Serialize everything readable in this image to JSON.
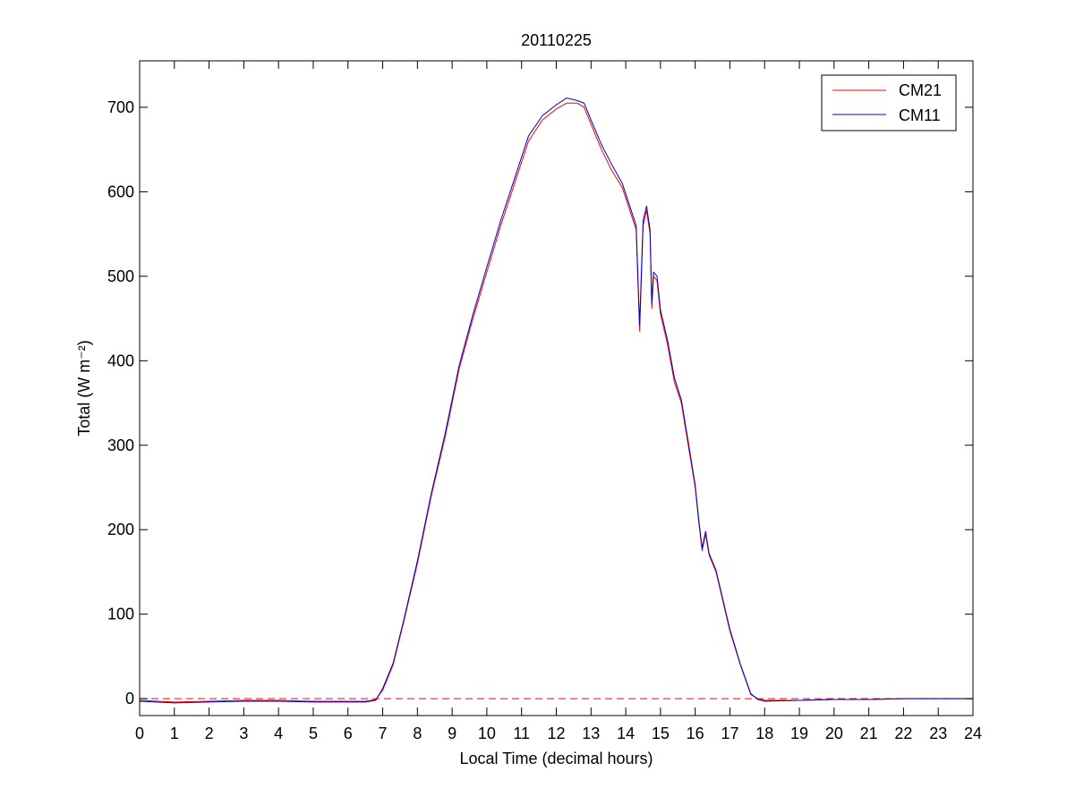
{
  "chart_data": {
    "type": "line",
    "title": "20110225",
    "xlabel": "Local Time (decimal hours)",
    "ylabel": "Total (W m⁻²)",
    "xlim": [
      0,
      24
    ],
    "ylim": [
      -20,
      755
    ],
    "x_ticks": [
      "0",
      "1",
      "2",
      "3",
      "4",
      "5",
      "6",
      "7",
      "8",
      "9",
      "10",
      "11",
      "12",
      "13",
      "14",
      "15",
      "16",
      "17",
      "18",
      "19",
      "20",
      "21",
      "22",
      "23",
      "24"
    ],
    "y_ticks": [
      "0",
      "100",
      "200",
      "300",
      "400",
      "500",
      "600",
      "700"
    ],
    "grid": false,
    "legend_position": "top-right",
    "reference_line": {
      "y": 0,
      "style": "dashed",
      "color": "#ff0000"
    },
    "series": [
      {
        "name": "CM21",
        "color": "#ff0000",
        "points": [
          [
            0,
            -2
          ],
          [
            1,
            -4
          ],
          [
            2,
            -3
          ],
          [
            3,
            -2
          ],
          [
            4,
            -2
          ],
          [
            5,
            -3
          ],
          [
            6,
            -3
          ],
          [
            6.5,
            -3
          ],
          [
            6.8,
            -1
          ],
          [
            7,
            10
          ],
          [
            7.3,
            40
          ],
          [
            7.6,
            90
          ],
          [
            8,
            160
          ],
          [
            8.4,
            240
          ],
          [
            8.8,
            310
          ],
          [
            9.2,
            390
          ],
          [
            9.6,
            450
          ],
          [
            10,
            505
          ],
          [
            10.4,
            560
          ],
          [
            10.8,
            610
          ],
          [
            11.2,
            660
          ],
          [
            11.6,
            685
          ],
          [
            12,
            698
          ],
          [
            12.3,
            705
          ],
          [
            12.6,
            705
          ],
          [
            12.8,
            700
          ],
          [
            13,
            680
          ],
          [
            13.3,
            650
          ],
          [
            13.6,
            625
          ],
          [
            13.9,
            605
          ],
          [
            14.1,
            580
          ],
          [
            14.3,
            555
          ],
          [
            14.4,
            435
          ],
          [
            14.5,
            560
          ],
          [
            14.6,
            578
          ],
          [
            14.7,
            550
          ],
          [
            14.75,
            462
          ],
          [
            14.8,
            500
          ],
          [
            14.9,
            495
          ],
          [
            15,
            455
          ],
          [
            15.2,
            420
          ],
          [
            15.4,
            375
          ],
          [
            15.6,
            350
          ],
          [
            15.8,
            300
          ],
          [
            16,
            250
          ],
          [
            16.1,
            210
          ],
          [
            16.2,
            175
          ],
          [
            16.3,
            195
          ],
          [
            16.4,
            170
          ],
          [
            16.6,
            150
          ],
          [
            17,
            80
          ],
          [
            17.3,
            40
          ],
          [
            17.6,
            5
          ],
          [
            17.8,
            0
          ],
          [
            18,
            -2
          ],
          [
            19,
            -2
          ],
          [
            20,
            -1
          ],
          [
            21,
            -1
          ],
          [
            22,
            0
          ],
          [
            23,
            0
          ],
          [
            24,
            0
          ]
        ]
      },
      {
        "name": "CM11",
        "color": "#0000cc",
        "points": [
          [
            0,
            -3
          ],
          [
            1,
            -5
          ],
          [
            2,
            -4
          ],
          [
            3,
            -3
          ],
          [
            4,
            -3
          ],
          [
            5,
            -4
          ],
          [
            6,
            -4
          ],
          [
            6.5,
            -4
          ],
          [
            6.8,
            -2
          ],
          [
            7,
            12
          ],
          [
            7.3,
            42
          ],
          [
            7.6,
            92
          ],
          [
            8,
            163
          ],
          [
            8.4,
            243
          ],
          [
            8.8,
            314
          ],
          [
            9.2,
            394
          ],
          [
            9.6,
            455
          ],
          [
            10,
            511
          ],
          [
            10.4,
            566
          ],
          [
            10.8,
            616
          ],
          [
            11.2,
            666
          ],
          [
            11.6,
            690
          ],
          [
            12,
            703
          ],
          [
            12.3,
            711
          ],
          [
            12.6,
            708
          ],
          [
            12.8,
            705
          ],
          [
            13,
            685
          ],
          [
            13.3,
            656
          ],
          [
            13.6,
            632
          ],
          [
            13.9,
            610
          ],
          [
            14.1,
            585
          ],
          [
            14.3,
            560
          ],
          [
            14.4,
            442
          ],
          [
            14.5,
            566
          ],
          [
            14.6,
            583
          ],
          [
            14.7,
            555
          ],
          [
            14.75,
            468
          ],
          [
            14.8,
            505
          ],
          [
            14.9,
            500
          ],
          [
            15,
            460
          ],
          [
            15.2,
            425
          ],
          [
            15.4,
            380
          ],
          [
            15.6,
            354
          ],
          [
            15.8,
            304
          ],
          [
            16,
            253
          ],
          [
            16.1,
            213
          ],
          [
            16.2,
            178
          ],
          [
            16.3,
            198
          ],
          [
            16.4,
            172
          ],
          [
            16.6,
            152
          ],
          [
            17,
            82
          ],
          [
            17.3,
            41
          ],
          [
            17.6,
            6
          ],
          [
            17.8,
            -1
          ],
          [
            18,
            -3
          ],
          [
            19,
            -2
          ],
          [
            20,
            -1
          ],
          [
            21,
            -1
          ],
          [
            22,
            0
          ],
          [
            23,
            0
          ],
          [
            24,
            0
          ]
        ]
      }
    ]
  }
}
